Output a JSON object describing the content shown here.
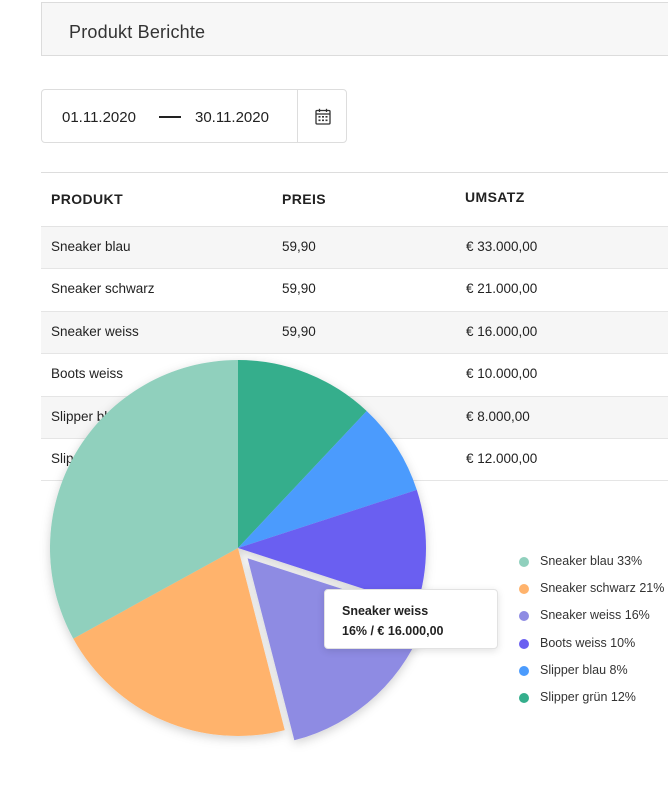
{
  "header": {
    "title": "Produkt Berichte"
  },
  "date_range": {
    "start": "01.11.2020",
    "end": "30.11.2020",
    "calendar_icon": "calendar-icon"
  },
  "table": {
    "columns": [
      "PRODUKT",
      "PREIS",
      "UMSATZ"
    ],
    "rows": [
      {
        "product": "Sneaker blau",
        "price": "59,90",
        "revenue": "€ 33.000,00"
      },
      {
        "product": "Sneaker schwarz",
        "price": "59,90",
        "revenue": "€ 21.000,00"
      },
      {
        "product": "Sneaker weiss",
        "price": "59,90",
        "revenue": "€ 16.000,00"
      },
      {
        "product": "Boots weiss",
        "price": "",
        "revenue": "€ 10.000,00"
      },
      {
        "product": "Slipper blau",
        "price": "",
        "revenue": "€ 8.000,00"
      },
      {
        "product": "Slipper grün",
        "price": "",
        "revenue": "€ 12.000,00"
      }
    ]
  },
  "chart_data": {
    "type": "pie",
    "slices": [
      {
        "name": "Sneaker blau",
        "percent": 33,
        "color": "#90d0bd"
      },
      {
        "name": "Sneaker schwarz",
        "percent": 21,
        "color": "#ffb36c"
      },
      {
        "name": "Sneaker weiss",
        "percent": 16,
        "color": "#8e8be3",
        "exploded": true
      },
      {
        "name": "Boots weiss",
        "percent": 10,
        "color": "#6a5ff1"
      },
      {
        "name": "Slipper blau",
        "percent": 8,
        "color": "#4b9bfd"
      },
      {
        "name": "Slipper grün",
        "percent": 12,
        "color": "#34ae8c"
      }
    ],
    "legend": [
      "Sneaker blau 33%",
      "Sneaker schwarz 21%",
      "Sneaker weiss 16%",
      "Boots weiss 10%",
      "Slipper blau 8%",
      "Slipper grün 12%"
    ],
    "legend_position": "right",
    "tooltip": {
      "title": "Sneaker weiss",
      "value": "16% / € 16.000,00"
    }
  }
}
